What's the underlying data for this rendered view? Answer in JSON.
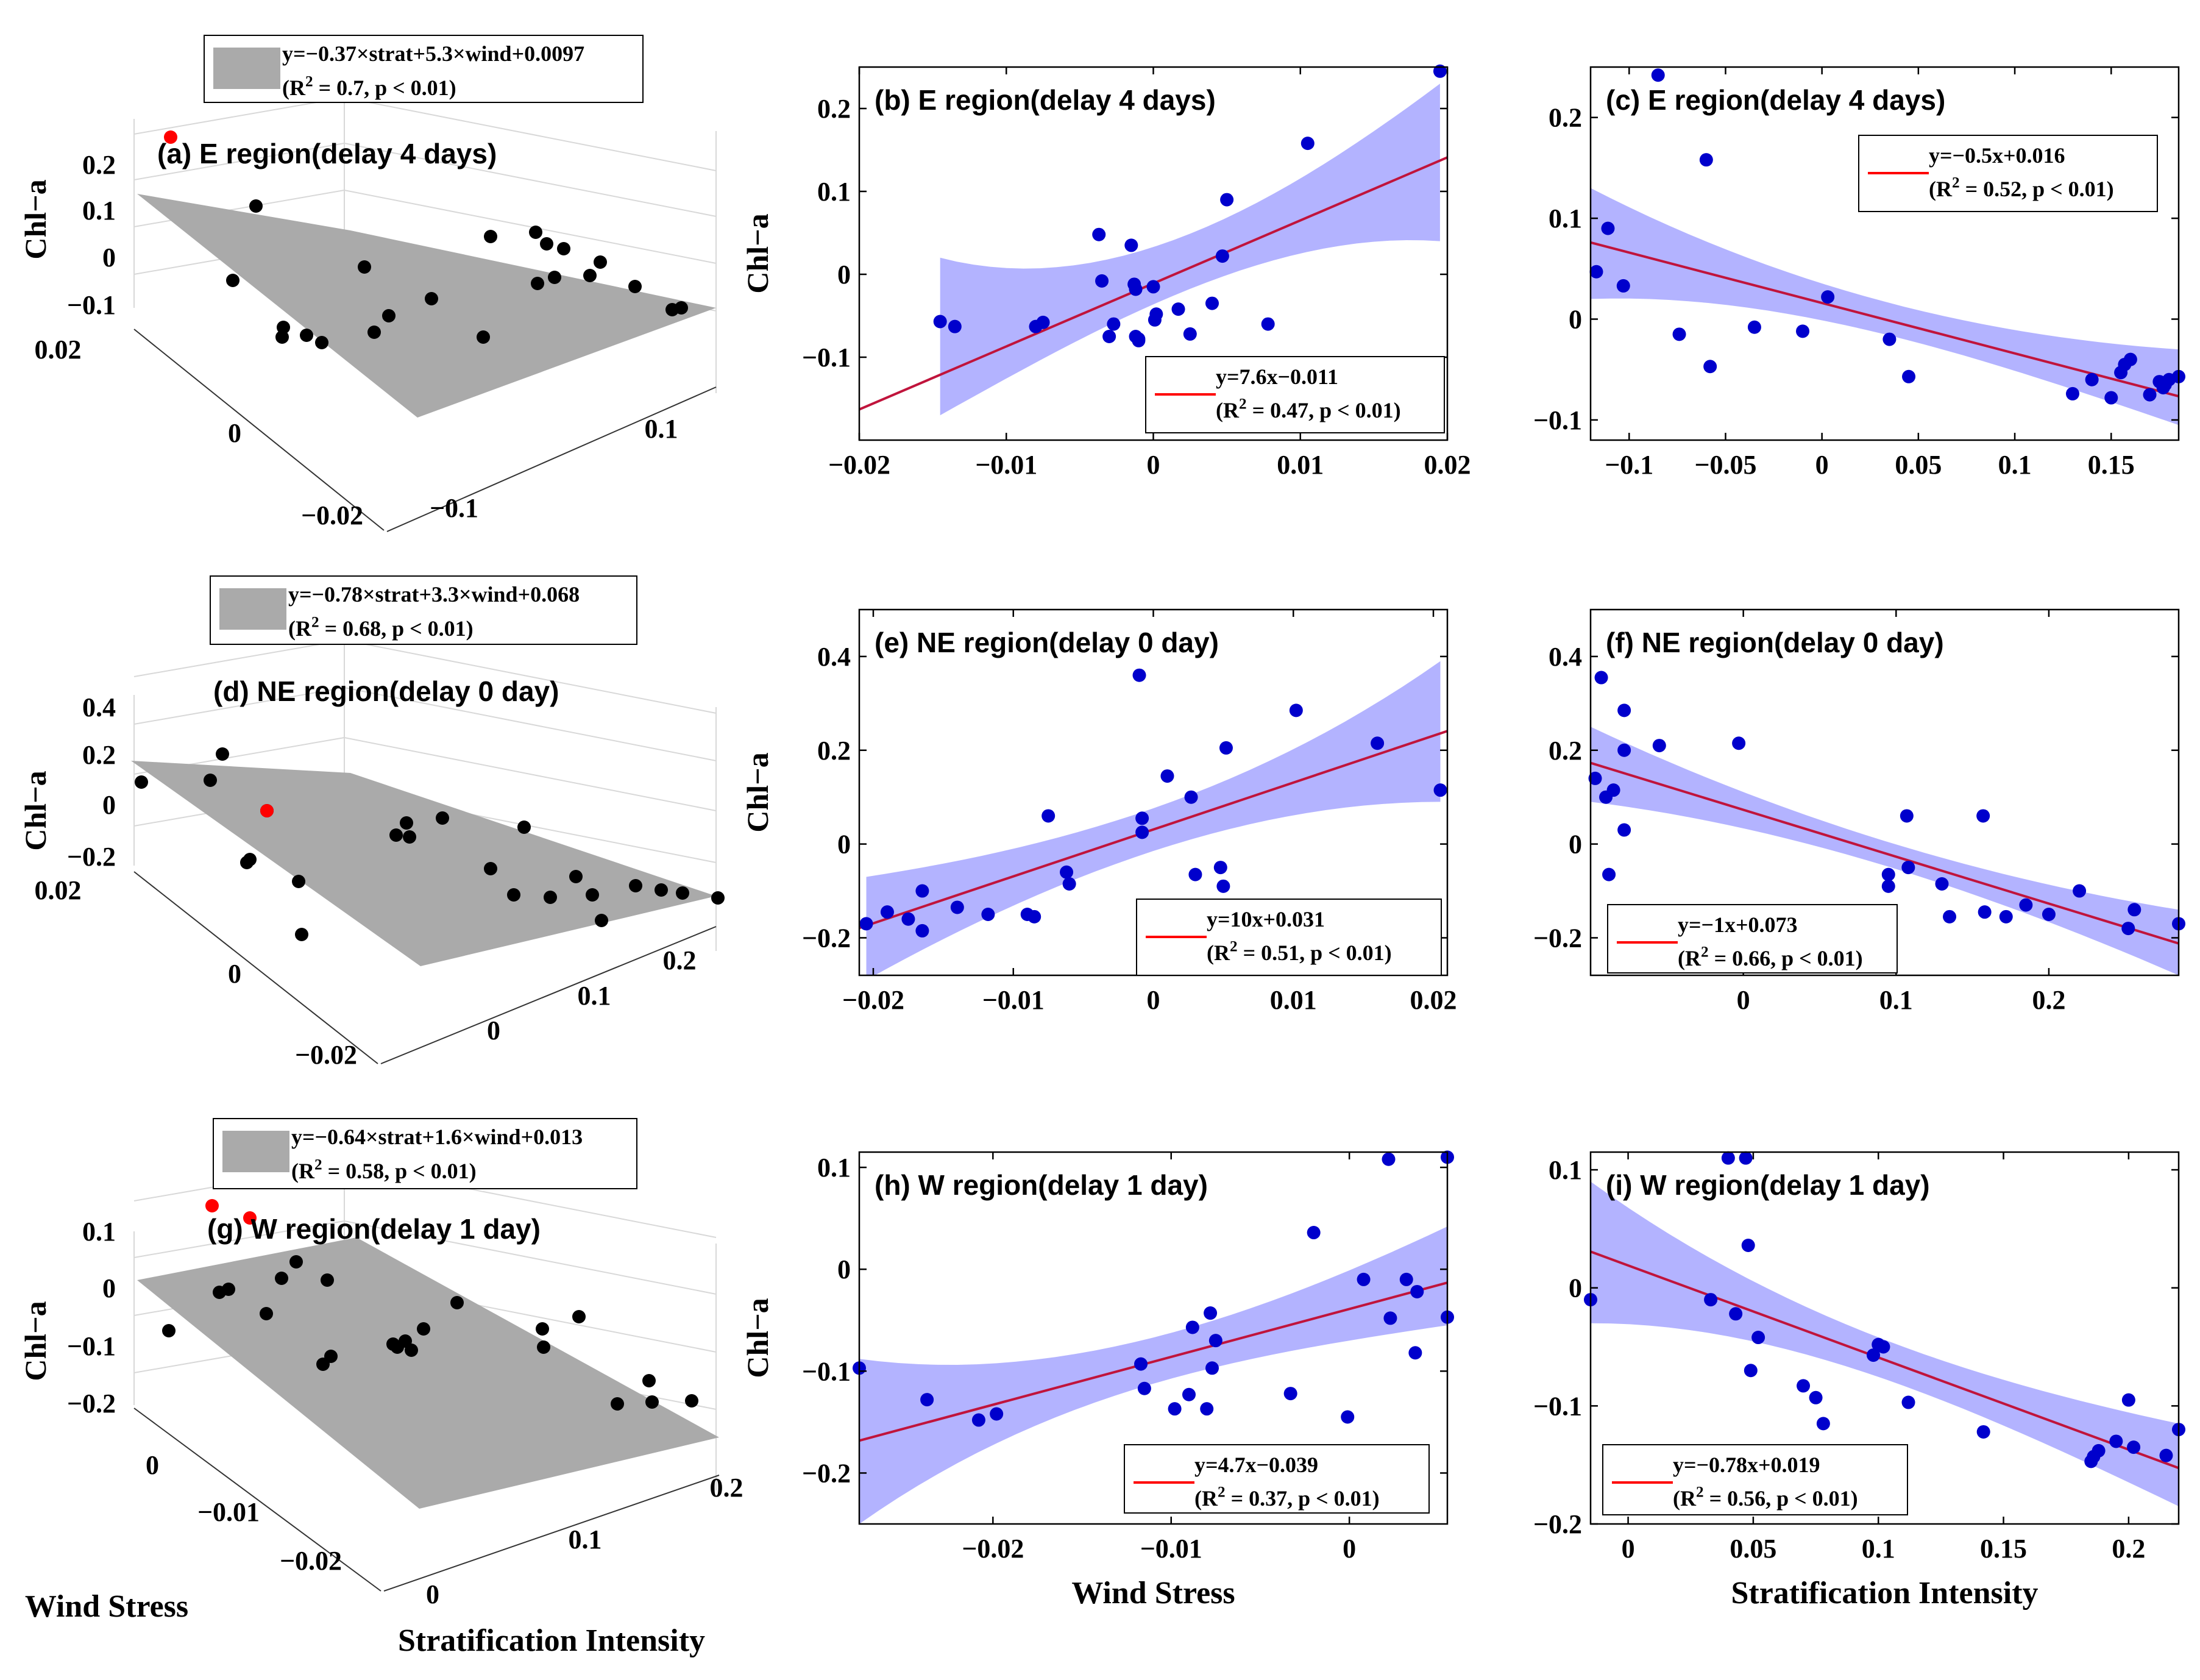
{
  "chart_data": [
    {
      "id": "a",
      "type": "scatter3d",
      "title": "(a) E region(delay 4 days)",
      "zlabel": "Chl−a",
      "z_ticks": [
        "0.2",
        "0.1",
        "0",
        "−0.1"
      ],
      "wind_ticks": [
        "0.02",
        "0",
        "−0.02"
      ],
      "strat_ticks": [
        "0.1",
        "−0.1"
      ],
      "legend": {
        "label": "y=−0.37×strat+5.3×wind+0.0097",
        "stats": "(R² = 0.7, p < 0.01)"
      },
      "fit": {
        "strat_coef": -0.37,
        "wind_coef": 5.3,
        "intercept": 0.0097,
        "r2": 0.7,
        "p": "< 0.01"
      },
      "colors": {
        "plane": "#aaaaaa",
        "points": "#000000",
        "highlight": "#ff0000"
      }
    },
    {
      "id": "b",
      "type": "scatter",
      "title": "(b) E region(delay 4 days)",
      "xlabel": "",
      "ylabel": "Chl−a",
      "xlim": [
        -0.02,
        0.02
      ],
      "ylim": [
        -0.2,
        0.25
      ],
      "xticks": [
        -0.02,
        -0.01,
        0,
        0.01,
        0.02
      ],
      "xtick_labels": [
        "−0.02",
        "−0.01",
        "0",
        "0.01",
        "0.02"
      ],
      "yticks": [
        -0.1,
        0,
        0.1,
        0.2
      ],
      "ytick_labels": [
        "−0.1",
        "0",
        "0.1",
        "0.2"
      ],
      "x": [
        -0.0145,
        -0.0135,
        -0.008,
        -0.0075,
        -0.0037,
        -0.0035,
        -0.003,
        -0.0027,
        -0.0015,
        -0.0013,
        -0.0012,
        -0.0012,
        -0.001,
        -0.001,
        0.0,
        0.0001,
        0.0002,
        0.0017,
        0.0025,
        0.004,
        0.0047,
        0.005,
        0.0078,
        0.0105,
        0.0195
      ],
      "y": [
        -0.057,
        -0.063,
        -0.063,
        -0.058,
        0.048,
        -0.008,
        -0.075,
        -0.06,
        0.035,
        -0.012,
        -0.018,
        -0.075,
        -0.078,
        -0.08,
        -0.015,
        -0.055,
        -0.048,
        -0.042,
        -0.072,
        -0.035,
        0.022,
        0.09,
        -0.06,
        0.158,
        0.245
      ],
      "fit": {
        "slope": 7.6,
        "intercept": -0.011,
        "r2": 0.47
      },
      "band": {
        "x": [
          -0.0145,
          0.0195
        ],
        "lower_at_ends": [
          -0.17,
          0.04
        ],
        "upper_at_ends": [
          0.02,
          0.23
        ]
      },
      "legend": {
        "label": "y=7.6x−0.011",
        "stats": "(R² = 0.47, p < 0.01)"
      },
      "colors": {
        "points": "#0000cc",
        "fit": "#c0143c",
        "band": "#9999ff",
        "legend_line": "#ff0000"
      }
    },
    {
      "id": "c",
      "type": "scatter",
      "title": "(c) E region(delay 4 days)",
      "xlabel": "",
      "ylabel": "",
      "xlim": [
        -0.12,
        0.185
      ],
      "ylim": [
        -0.12,
        0.25
      ],
      "xticks": [
        -0.1,
        -0.05,
        0,
        0.05,
        0.1,
        0.15
      ],
      "xtick_labels": [
        "−0.1",
        "−0.05",
        "0",
        "0.05",
        "0.1",
        "0.15"
      ],
      "yticks": [
        -0.1,
        0,
        0.1,
        0.2
      ],
      "ytick_labels": [
        "−0.1",
        "0",
        "0.1",
        "0.2"
      ],
      "x": [
        -0.117,
        -0.111,
        -0.103,
        -0.085,
        -0.074,
        -0.06,
        -0.058,
        -0.035,
        -0.01,
        0.003,
        0.035,
        0.045,
        0.13,
        0.14,
        0.15,
        0.155,
        0.157,
        0.16,
        0.17,
        0.175,
        0.177,
        0.178,
        0.18,
        0.185
      ],
      "y": [
        0.047,
        0.09,
        0.033,
        0.242,
        -0.015,
        0.158,
        -0.047,
        -0.008,
        -0.012,
        0.022,
        -0.02,
        -0.057,
        -0.074,
        -0.06,
        -0.078,
        -0.053,
        -0.045,
        -0.04,
        -0.075,
        -0.062,
        -0.068,
        -0.065,
        -0.06,
        -0.057
      ],
      "fit": {
        "slope": -0.5,
        "intercept": 0.016,
        "r2": 0.52
      },
      "band": {
        "x": [
          -0.12,
          0.185
        ],
        "lower_at_ends": [
          0.02,
          -0.105
        ],
        "upper_at_ends": [
          0.13,
          -0.03
        ]
      },
      "legend": {
        "label": "y=−0.5x+0.016",
        "stats": "(R² = 0.52, p < 0.01)"
      },
      "colors": {
        "points": "#0000cc",
        "fit": "#c0143c",
        "band": "#9999ff",
        "legend_line": "#ff0000"
      }
    },
    {
      "id": "d",
      "type": "scatter3d",
      "title": "(d) NE region(delay 0 day)",
      "zlabel": "Chl−a",
      "z_ticks": [
        "0.4",
        "0.2",
        "0",
        "−0.2"
      ],
      "wind_ticks": [
        "0.02",
        "0",
        "−0.02"
      ],
      "strat_ticks": [
        "0.2",
        "0.1",
        "0"
      ],
      "legend": {
        "label": "y=−0.78×strat+3.3×wind+0.068",
        "stats": "(R² = 0.68, p < 0.01)"
      },
      "fit": {
        "strat_coef": -0.78,
        "wind_coef": 3.3,
        "intercept": 0.068,
        "r2": 0.68,
        "p": "< 0.01"
      },
      "colors": {
        "plane": "#aaaaaa",
        "points": "#000000",
        "highlight": "#ff0000"
      }
    },
    {
      "id": "e",
      "type": "scatter",
      "title": "(e) NE region(delay 0 day)",
      "xlabel": "",
      "ylabel": "Chl−a",
      "xlim": [
        -0.021,
        0.021
      ],
      "ylim": [
        -0.28,
        0.5
      ],
      "xticks": [
        -0.02,
        -0.01,
        0,
        0.01,
        0.02
      ],
      "xtick_labels": [
        "−0.02",
        "−0.01",
        "0",
        "0.01",
        "0.02"
      ],
      "yticks": [
        -0.2,
        0,
        0.2,
        0.4
      ],
      "ytick_labels": [
        "−0.2",
        "0",
        "0.2",
        "0.4"
      ],
      "x": [
        -0.0205,
        -0.019,
        -0.0175,
        -0.0165,
        -0.0165,
        -0.014,
        -0.0118,
        -0.009,
        -0.0085,
        -0.0075,
        -0.0062,
        -0.006,
        -0.001,
        -0.0008,
        -0.0008,
        0.001,
        0.0027,
        0.003,
        0.0048,
        0.005,
        0.0052,
        0.0102,
        0.016,
        0.0205
      ],
      "y": [
        -0.17,
        -0.145,
        -0.16,
        -0.1,
        -0.185,
        -0.135,
        -0.15,
        -0.15,
        -0.155,
        0.06,
        -0.06,
        -0.085,
        0.36,
        0.055,
        0.025,
        0.145,
        0.1,
        -0.065,
        -0.05,
        -0.09,
        0.205,
        0.285,
        0.215,
        0.115
      ],
      "fit": {
        "slope": 10,
        "intercept": 0.031,
        "r2": 0.51
      },
      "band": {
        "x": [
          -0.0205,
          0.0205
        ],
        "lower_at_ends": [
          -0.29,
          0.09
        ],
        "upper_at_ends": [
          -0.07,
          0.39
        ]
      },
      "legend": {
        "label": "y=10x+0.031",
        "stats": "(R² = 0.51, p < 0.01)"
      },
      "colors": {
        "points": "#0000cc",
        "fit": "#c0143c",
        "band": "#9999ff",
        "legend_line": "#ff0000"
      }
    },
    {
      "id": "f",
      "type": "scatter",
      "title": "(f) NE region(delay 0 day)",
      "xlabel": "",
      "ylabel": "",
      "xlim": [
        -0.1,
        0.285
      ],
      "ylim": [
        -0.28,
        0.5
      ],
      "xticks": [
        0,
        0.1,
        0.2
      ],
      "xtick_labels": [
        "0",
        "0.1",
        "0.2"
      ],
      "yticks": [
        -0.2,
        0,
        0.2,
        0.4
      ],
      "ytick_labels": [
        "−0.2",
        "0",
        "0.2",
        "0.4"
      ],
      "x": [
        -0.097,
        -0.093,
        -0.09,
        -0.088,
        -0.085,
        -0.078,
        -0.078,
        -0.078,
        -0.055,
        -0.003,
        0.095,
        0.095,
        0.107,
        0.108,
        0.13,
        0.135,
        0.157,
        0.158,
        0.172,
        0.185,
        0.2,
        0.22,
        0.252,
        0.256,
        0.285
      ],
      "y": [
        0.14,
        0.355,
        0.1,
        -0.065,
        0.115,
        0.285,
        0.2,
        0.03,
        0.21,
        0.215,
        -0.065,
        -0.09,
        0.06,
        -0.05,
        -0.085,
        -0.155,
        0.06,
        -0.145,
        -0.155,
        -0.13,
        -0.15,
        -0.1,
        -0.18,
        -0.14,
        -0.17
      ],
      "fit": {
        "slope": -1,
        "intercept": 0.073,
        "r2": 0.66
      },
      "band": {
        "x": [
          -0.1,
          0.285
        ],
        "lower_at_ends": [
          0.09,
          -0.28
        ],
        "upper_at_ends": [
          0.25,
          -0.14
        ]
      },
      "legend": {
        "label": "y=−1x+0.073",
        "stats": "(R² = 0.66, p < 0.01)"
      },
      "colors": {
        "points": "#0000cc",
        "fit": "#c0143c",
        "band": "#9999ff",
        "legend_line": "#ff0000"
      }
    },
    {
      "id": "g",
      "type": "scatter3d",
      "title": "(g) W region(delay 1 day)",
      "zlabel": "Chl−a",
      "z_ticks": [
        "0.1",
        "0",
        "−0.1",
        "−0.2"
      ],
      "wind_ticks": [
        "0",
        "−0.01",
        "−0.02"
      ],
      "strat_ticks": [
        "0.2",
        "0.1",
        "0"
      ],
      "xlabel": "Wind Stress",
      "ylabel": "Stratification Intensity",
      "legend": {
        "label": "y=−0.64×strat+1.6×wind+0.013",
        "stats": "(R² = 0.58, p < 0.01)"
      },
      "fit": {
        "strat_coef": -0.64,
        "wind_coef": 1.6,
        "intercept": 0.013,
        "r2": 0.58,
        "p": "< 0.01"
      },
      "colors": {
        "plane": "#aaaaaa",
        "points": "#000000",
        "highlight": "#ff0000"
      }
    },
    {
      "id": "h",
      "type": "scatter",
      "title": "(h) W region(delay 1 day)",
      "xlabel": "Wind Stress",
      "ylabel": "Chl−a",
      "xlim": [
        -0.0275,
        0.0055
      ],
      "ylim": [
        -0.25,
        0.115
      ],
      "xticks": [
        -0.02,
        -0.01,
        0
      ],
      "xtick_labels": [
        "−0.02",
        "−0.01",
        "0"
      ],
      "yticks": [
        -0.2,
        -0.1,
        0,
        0.1
      ],
      "ytick_labels": [
        "−0.2",
        "−0.1",
        "0",
        "0.1"
      ],
      "x": [
        -0.0275,
        -0.0237,
        -0.0208,
        -0.0198,
        -0.0117,
        -0.0115,
        -0.0098,
        -0.009,
        -0.0088,
        -0.008,
        -0.0078,
        -0.0077,
        -0.0075,
        -0.0033,
        -0.002,
        -0.0001,
        0.0008,
        0.0022,
        0.0023,
        0.0032,
        0.0037,
        0.0038,
        0.0055,
        0.0055
      ],
      "y": [
        -0.097,
        -0.128,
        -0.148,
        -0.142,
        -0.093,
        -0.117,
        -0.137,
        -0.123,
        -0.057,
        -0.137,
        -0.043,
        -0.097,
        -0.07,
        -0.122,
        0.036,
        -0.145,
        -0.01,
        0.108,
        -0.048,
        -0.01,
        -0.082,
        -0.022,
        0.11,
        -0.047
      ],
      "fit": {
        "slope": 4.7,
        "intercept": -0.039,
        "r2": 0.37
      },
      "band": {
        "x": [
          -0.0275,
          0.0055
        ],
        "lower_at_ends": [
          -0.25,
          -0.055
        ],
        "upper_at_ends": [
          -0.088,
          0.042
        ]
      },
      "legend": {
        "label": "y=4.7x−0.039",
        "stats": "(R² = 0.37, p < 0.01)"
      },
      "colors": {
        "points": "#0000cc",
        "fit": "#c0143c",
        "band": "#9999ff",
        "legend_line": "#ff0000"
      }
    },
    {
      "id": "i",
      "type": "scatter",
      "title": "(i) W region(delay 1 day)",
      "xlabel": "Stratification Intensity",
      "ylabel": "",
      "xlim": [
        -0.015,
        0.22
      ],
      "ylim": [
        -0.2,
        0.115
      ],
      "xticks": [
        0,
        0.05,
        0.1,
        0.15,
        0.2
      ],
      "xtick_labels": [
        "0",
        "0.05",
        "0.1",
        "0.15",
        "0.2"
      ],
      "yticks": [
        -0.2,
        -0.1,
        0,
        0.1
      ],
      "ytick_labels": [
        "−0.2",
        "−0.1",
        "0",
        "0.1"
      ],
      "x": [
        -0.015,
        0.033,
        0.04,
        0.043,
        0.047,
        0.048,
        0.049,
        0.052,
        0.07,
        0.075,
        0.078,
        0.098,
        0.1,
        0.102,
        0.112,
        0.142,
        0.185,
        0.186,
        0.188,
        0.195,
        0.2,
        0.202,
        0.215,
        0.22
      ],
      "y": [
        -0.01,
        -0.01,
        0.11,
        -0.022,
        0.11,
        0.036,
        -0.07,
        -0.042,
        -0.083,
        -0.093,
        -0.115,
        -0.057,
        -0.048,
        -0.05,
        -0.097,
        -0.122,
        -0.147,
        -0.143,
        -0.138,
        -0.13,
        -0.095,
        -0.135,
        -0.142,
        -0.12
      ],
      "fit": {
        "slope": -0.78,
        "intercept": 0.019,
        "r2": 0.56
      },
      "band": {
        "x": [
          -0.015,
          0.22
        ],
        "lower_at_ends": [
          -0.03,
          -0.185
        ],
        "upper_at_ends": [
          0.09,
          -0.115
        ]
      },
      "legend": {
        "label": "y=−0.78x+0.019",
        "stats": "(R² = 0.56, p < 0.01)"
      },
      "colors": {
        "points": "#0000cc",
        "fit": "#c0143c",
        "band": "#9999ff",
        "legend_line": "#ff0000"
      }
    }
  ]
}
